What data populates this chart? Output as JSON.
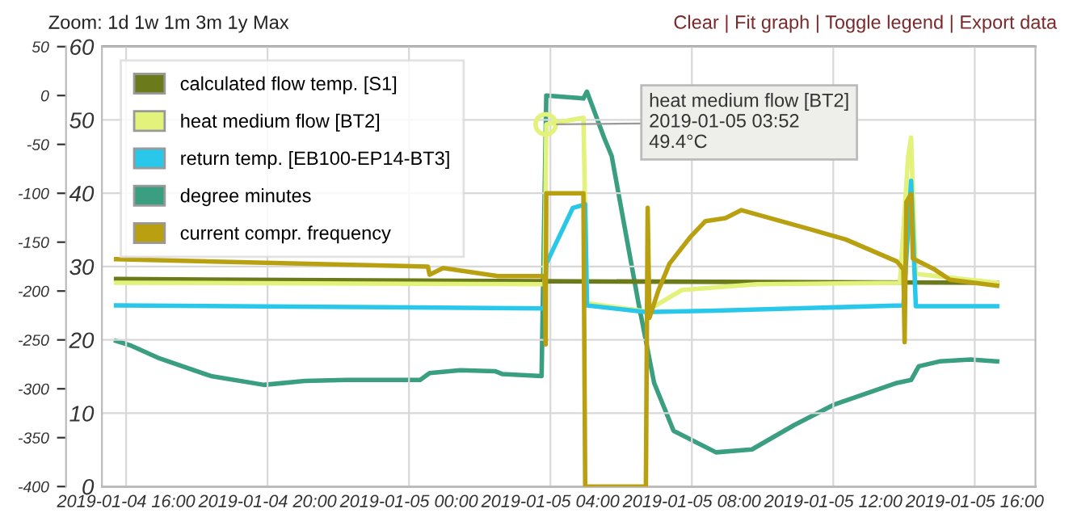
{
  "chart_data": {
    "type": "line",
    "xlim": [
      "2019-01-04T15:19",
      "2019-01-05T17:43"
    ],
    "xticks": [
      {
        "value": "2019-01-04T16:00",
        "label": "2019-01-04 16:00"
      },
      {
        "value": "2019-01-04T20:00",
        "label": "2019-01-04 20:00"
      },
      {
        "value": "2019-01-05T00:00",
        "label": "2019-01-05 00:00"
      },
      {
        "value": "2019-01-05T04:00",
        "label": "2019-01-05 04:00"
      },
      {
        "value": "2019-01-05T08:00",
        "label": "2019-01-05 08:00"
      },
      {
        "value": "2019-01-05T12:00",
        "label": "2019-01-05 12:00"
      },
      {
        "value": "2019-01-05T16:00",
        "label": "2019-01-05 16:00"
      }
    ],
    "ylim": [
      0,
      60
    ],
    "yticks": [
      0,
      10,
      20,
      30,
      40,
      50,
      60
    ],
    "y2lim": [
      -400,
      50
    ],
    "y2ticks": [
      -400,
      -350,
      -300,
      -250,
      -200,
      -150,
      -100,
      -50,
      0,
      50
    ],
    "grid": true,
    "legend": "top left",
    "marker": "none",
    "line_style": "solid",
    "series": [
      {
        "name": "calculated flow temp. [S1]",
        "color": "#6b7a1a",
        "x": [
          "2019-01-04T15:43",
          "2019-01-05T03:50",
          "2019-01-05T16:38"
        ],
        "values": [
          28.3,
          28.0,
          27.8
        ]
      },
      {
        "name": "heat medium flow [BT2]",
        "color": "#e2f27a",
        "x": [
          "2019-01-04T15:43",
          "2019-01-05T03:50",
          "2019-01-05T03:53",
          "2019-01-05T04:56",
          "2019-01-05T05:02",
          "2019-01-05T06:42",
          "2019-01-05T07:43",
          "2019-01-05T09:50",
          "2019-01-05T13:53",
          "2019-01-05T14:07",
          "2019-01-05T14:12",
          "2019-01-05T14:15",
          "2019-01-05T14:20",
          "2019-01-05T16:38"
        ],
        "values": [
          27.8,
          27.6,
          49.4,
          50.3,
          25.0,
          23.9,
          26.8,
          27.6,
          27.8,
          45,
          47.6,
          40,
          29,
          27.8
        ]
      },
      {
        "name": "return temp. [EB100-EP14-BT3]",
        "color": "#29c8ea",
        "x": [
          "2019-01-04T15:43",
          "2019-01-05T03:50",
          "2019-01-05T03:53",
          "2019-01-05T04:38",
          "2019-01-05T04:59",
          "2019-01-05T05:02",
          "2019-01-05T06:42",
          "2019-01-05T08:41",
          "2019-01-05T13:59",
          "2019-01-05T14:12",
          "2019-01-05T14:20",
          "2019-01-05T16:38"
        ],
        "values": [
          24.7,
          24.3,
          30.4,
          38.0,
          38.5,
          24.7,
          23.8,
          24.0,
          24.7,
          41.7,
          24.6,
          24.6
        ]
      },
      {
        "name": "degree minutes",
        "color": "#3a9e80",
        "axis": "y2",
        "x": [
          "2019-01-04T15:43",
          "2019-01-04T16:09",
          "2019-01-04T16:57",
          "2019-01-04T18:24",
          "2019-01-04T19:54",
          "2019-01-04T21:03",
          "2019-01-04T22:14",
          "2019-01-05T00:19",
          "2019-01-05T00:35",
          "2019-01-05T01:27",
          "2019-01-05T02:26",
          "2019-01-05T02:39",
          "2019-01-05T03:45",
          "2019-01-05T03:53",
          "2019-01-05T04:56",
          "2019-01-05T05:02",
          "2019-01-05T05:31",
          "2019-01-05T05:44",
          "2019-01-05T06:29",
          "2019-01-05T06:56",
          "2019-01-05T07:29",
          "2019-01-05T08:41",
          "2019-01-05T09:42",
          "2019-01-05T10:54",
          "2019-01-05T12:02",
          "2019-01-05T13:48",
          "2019-01-05T14:12",
          "2019-01-05T14:25",
          "2019-01-05T15:00",
          "2019-01-05T15:53",
          "2019-01-05T16:38"
        ],
        "values": [
          -251,
          -256,
          -269,
          -287,
          -296,
          -292,
          -291,
          -291,
          -284,
          -281,
          -282,
          -285,
          -287,
          0,
          -3,
          4,
          -43,
          -62,
          -211,
          -294,
          -343,
          -365,
          -362,
          -337,
          -316,
          -294,
          -291,
          -277,
          -272,
          -270,
          -272
        ]
      },
      {
        "name": "current compr. frequency",
        "color": "#b8a010",
        "x": [
          "2019-01-04T15:43",
          "2019-01-05T00:32",
          "2019-01-05T00:35",
          "2019-01-05T00:58",
          "2019-01-05T02:31",
          "2019-01-05T03:50",
          "2019-01-05T03:52",
          "2019-01-05T03:53",
          "2019-01-05T04:56",
          "2019-01-05T04:59",
          "2019-01-05T06:42",
          "2019-01-05T06:45",
          "2019-01-05T06:48",
          "2019-01-05T07:03",
          "2019-01-05T07:22",
          "2019-01-05T07:57",
          "2019-01-05T08:23",
          "2019-01-05T08:57",
          "2019-01-05T09:24",
          "2019-01-05T11:20",
          "2019-01-05T12:21",
          "2019-01-05T13:48",
          "2019-01-05T13:59",
          "2019-01-05T14:01",
          "2019-01-05T14:04",
          "2019-01-05T14:12",
          "2019-01-05T14:15",
          "2019-01-05T14:52",
          "2019-01-05T15:18",
          "2019-01-05T16:38"
        ],
        "values": [
          31,
          30,
          28.9,
          29.8,
          28.7,
          28.7,
          19.4,
          40,
          40,
          0,
          0,
          38,
          23,
          26.7,
          30.4,
          34,
          36.2,
          36.6,
          37.7,
          35.1,
          33.7,
          30.7,
          29.6,
          19.7,
          38.8,
          39.9,
          31.1,
          29.6,
          28.2,
          27.4
        ]
      }
    ],
    "annotations": [
      "Zoom: 1d 1w 1m 3m 1y Max",
      "Clear | Fit graph | Toggle legend | Export data",
      {
        "text": "heat medium flow [BT2]\n2019-01-05 03:52\n49.4°C",
        "x": "2019-01-05T03:52",
        "y": 49.4
      }
    ]
  }
}
